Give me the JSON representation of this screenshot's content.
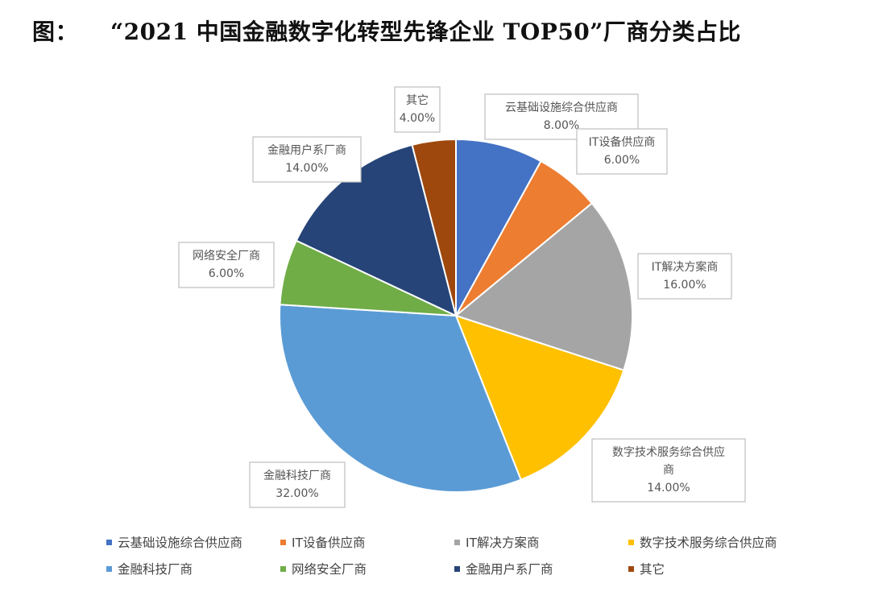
{
  "title": {
    "prefix": "图：",
    "text": "“2021 中国金融数字化转型先锋企业 TOP50”厂商分类占比"
  },
  "chart_data": {
    "type": "pie",
    "start_angle_deg": 0,
    "direction": "clockwise",
    "slices": [
      {
        "label": "云基础设施综合供应商",
        "value": 8.0,
        "display": "8.00%",
        "color": "#4472C4"
      },
      {
        "label": "IT设备供应商",
        "value": 6.0,
        "display": "6.00%",
        "color": "#ED7D31"
      },
      {
        "label": "IT解决方案商",
        "value": 16.0,
        "display": "16.00%",
        "color": "#A5A5A5"
      },
      {
        "label": "数字技术服务综合供应商",
        "value": 14.0,
        "display": "14.00%",
        "color": "#FFC000"
      },
      {
        "label": "金融科技厂商",
        "value": 32.0,
        "display": "32.00%",
        "color": "#5B9BD5"
      },
      {
        "label": "网络安全厂商",
        "value": 6.0,
        "display": "6.00%",
        "color": "#70AD47"
      },
      {
        "label": "金融用户系厂商",
        "value": 14.0,
        "display": "14.00%",
        "color": "#264478"
      },
      {
        "label": "其它",
        "value": 4.0,
        "display": "4.00%",
        "color": "#9E480E"
      }
    ],
    "legend_position": "bottom"
  }
}
